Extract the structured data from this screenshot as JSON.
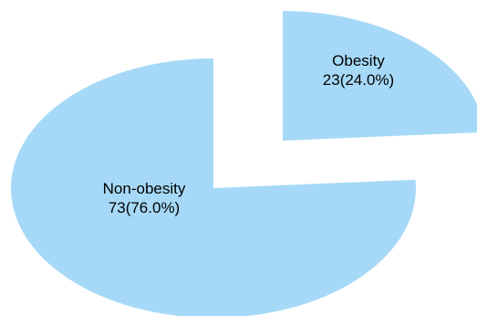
{
  "chart_data": {
    "type": "pie",
    "style": "exploded-3d-ellipse",
    "slices": [
      {
        "name": "Obesity",
        "value": 23,
        "percent": "24.0%",
        "display": "23(24.0%)",
        "exploded": true
      },
      {
        "name": "Non-obesity",
        "value": 73,
        "percent": "76.0%",
        "display": "73(76.0%)",
        "exploded": false
      }
    ],
    "colors": {
      "slice_fill": "#a6d9f7",
      "label": "#000000"
    },
    "legend": "none",
    "title": ""
  }
}
